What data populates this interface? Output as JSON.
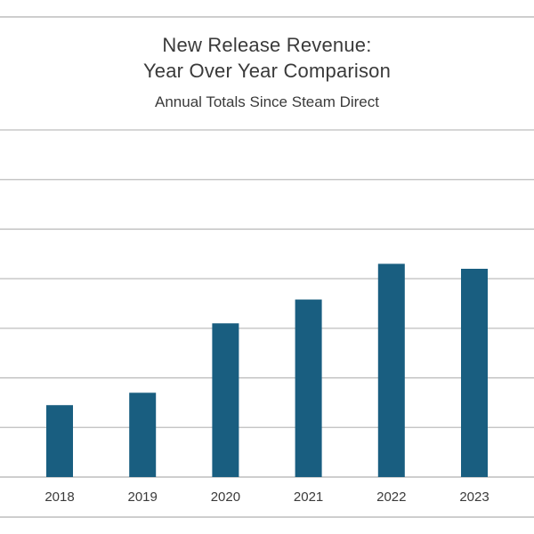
{
  "chart_data": {
    "type": "bar",
    "title_lines": [
      "New Release Revenue:",
      "Year Over Year Comparison"
    ],
    "subtitle": "Annual Totals Since Steam Direct",
    "categories": [
      "2018",
      "2019",
      "2020",
      "2021",
      "2022",
      "2023"
    ],
    "values": [
      1.45,
      1.7,
      3.1,
      3.58,
      4.3,
      4.2
    ],
    "ylim": [
      0,
      7
    ],
    "grid": true,
    "legend": "none",
    "bar_color": "#195e80",
    "grid_color": "#bdbdbd",
    "text_color": "#3a3a3a"
  }
}
